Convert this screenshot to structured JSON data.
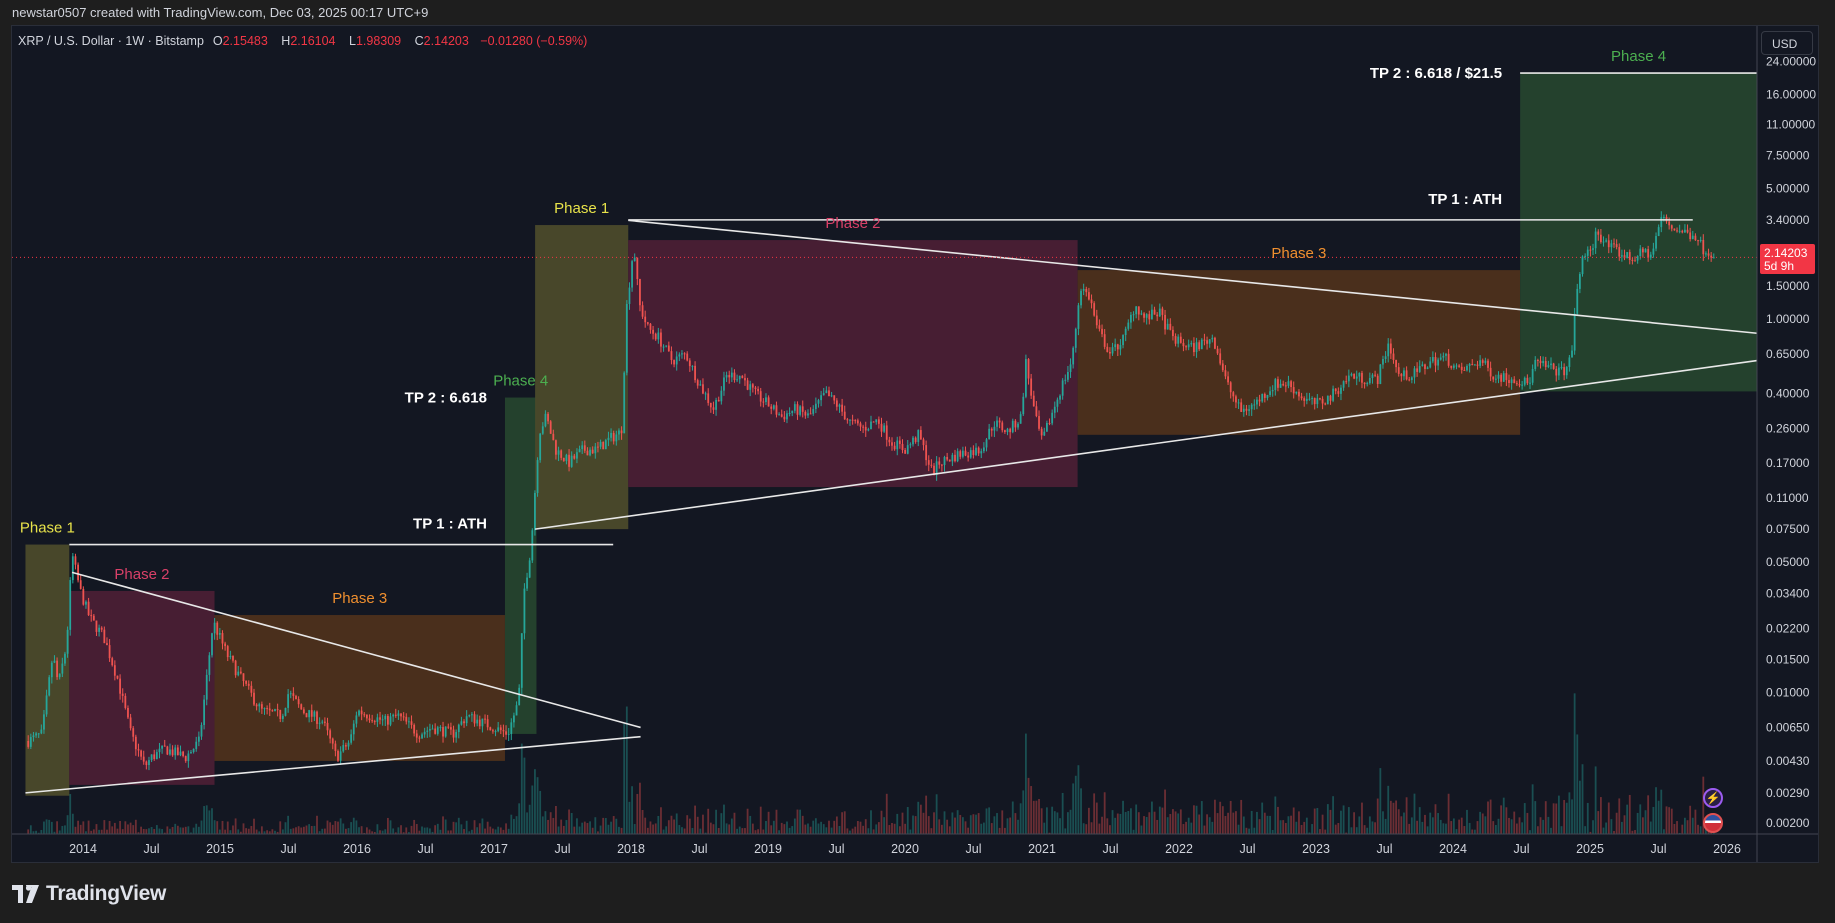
{
  "credit": "newstar0507 created with TradingView.com, Dec 03, 2025 00:17 UTC+9",
  "legend": {
    "symbol": "XRP / U.S. Dollar · 1W · Bitstamp",
    "o_label": "O",
    "o": "2.15483",
    "h_label": "H",
    "h": "2.16104",
    "l_label": "L",
    "l": "1.98309",
    "c_label": "C",
    "c": "2.14203",
    "change": "−0.01280 (−0.59%)"
  },
  "currency_button": "USD",
  "price_badge": {
    "price": "2.14203",
    "countdown": "5d 9h"
  },
  "brand": "TradingView",
  "icons": [
    "lightning-icon",
    "us-flag-icon"
  ],
  "colors": {
    "background": "#131722",
    "up": "#26a69a",
    "down": "#ef5350",
    "phase1": "#e8e34a",
    "phase2": "#d94068",
    "phase3": "#ef8f2f",
    "phase4": "#4caf50",
    "phase1_fill": "#4b4a2b",
    "phase2_fill": "#4a1f35",
    "phase3_fill": "#4d301c",
    "phase4_fill": "#25432e",
    "line": "#e8e8e8",
    "last_price": "#f23645"
  },
  "chart_data": {
    "type": "candlestick",
    "interval": "1W",
    "y_scale": "log",
    "ylim": [
      0.002,
      24
    ],
    "xlim": [
      "2013-08",
      "2026-03"
    ],
    "grid": false,
    "y_ticks": [
      "24.00000",
      "16.00000",
      "11.00000",
      "7.50000",
      "5.00000",
      "3.40000",
      "1.50000",
      "1.00000",
      "0.65000",
      "0.40000",
      "0.26000",
      "0.17000",
      "0.11000",
      "0.07500",
      "0.05000",
      "0.03400",
      "0.02200",
      "0.01500",
      "0.01000",
      "0.00650",
      "0.00430",
      "0.00290",
      "0.00200"
    ],
    "x_ticks": [
      {
        "label": "2014",
        "date": "2014-01"
      },
      {
        "label": "Jul",
        "date": "2014-07"
      },
      {
        "label": "2015",
        "date": "2015-01"
      },
      {
        "label": "Jul",
        "date": "2015-07"
      },
      {
        "label": "2016",
        "date": "2016-01"
      },
      {
        "label": "Jul",
        "date": "2016-07"
      },
      {
        "label": "2017",
        "date": "2017-01"
      },
      {
        "label": "Jul",
        "date": "2017-07"
      },
      {
        "label": "2018",
        "date": "2018-01"
      },
      {
        "label": "Jul",
        "date": "2018-07"
      },
      {
        "label": "2019",
        "date": "2019-01"
      },
      {
        "label": "Jul",
        "date": "2019-07"
      },
      {
        "label": "2020",
        "date": "2020-01"
      },
      {
        "label": "Jul",
        "date": "2020-07"
      },
      {
        "label": "2021",
        "date": "2021-01"
      },
      {
        "label": "Jul",
        "date": "2021-07"
      },
      {
        "label": "2022",
        "date": "2022-01"
      },
      {
        "label": "Jul",
        "date": "2022-07"
      },
      {
        "label": "2023",
        "date": "2023-01"
      },
      {
        "label": "Jul",
        "date": "2023-07"
      },
      {
        "label": "2024",
        "date": "2024-01"
      },
      {
        "label": "Jul",
        "date": "2024-07"
      },
      {
        "label": "2025",
        "date": "2025-01"
      },
      {
        "label": "Jul",
        "date": "2025-07"
      },
      {
        "label": "2026",
        "date": "2026-01"
      }
    ],
    "last_price": 2.14203,
    "close_path": [
      [
        2013.6,
        0.0055
      ],
      [
        2013.7,
        0.006
      ],
      [
        2013.78,
        0.016
      ],
      [
        2013.82,
        0.011
      ],
      [
        2013.88,
        0.018
      ],
      [
        2013.92,
        0.055
      ],
      [
        2013.98,
        0.035
      ],
      [
        2014.05,
        0.025
      ],
      [
        2014.15,
        0.02
      ],
      [
        2014.25,
        0.012
      ],
      [
        2014.35,
        0.006
      ],
      [
        2014.45,
        0.004
      ],
      [
        2014.5,
        0.0045
      ],
      [
        2014.6,
        0.005
      ],
      [
        2014.75,
        0.0045
      ],
      [
        2014.85,
        0.0055
      ],
      [
        2014.95,
        0.024
      ],
      [
        2015.05,
        0.016
      ],
      [
        2015.15,
        0.012
      ],
      [
        2015.3,
        0.008
      ],
      [
        2015.45,
        0.0075
      ],
      [
        2015.5,
        0.01
      ],
      [
        2015.6,
        0.008
      ],
      [
        2015.75,
        0.007
      ],
      [
        2015.85,
        0.0045
      ],
      [
        2015.95,
        0.0055
      ],
      [
        2016.0,
        0.008
      ],
      [
        2016.1,
        0.0075
      ],
      [
        2016.2,
        0.007
      ],
      [
        2016.3,
        0.0075
      ],
      [
        2016.45,
        0.006
      ],
      [
        2016.55,
        0.0065
      ],
      [
        2016.7,
        0.006
      ],
      [
        2016.8,
        0.0075
      ],
      [
        2016.9,
        0.007
      ],
      [
        2017.0,
        0.0065
      ],
      [
        2017.1,
        0.006
      ],
      [
        2017.18,
        0.009
      ],
      [
        2017.22,
        0.035
      ],
      [
        2017.27,
        0.06
      ],
      [
        2017.33,
        0.25
      ],
      [
        2017.38,
        0.3
      ],
      [
        2017.45,
        0.2
      ],
      [
        2017.55,
        0.17
      ],
      [
        2017.65,
        0.2
      ],
      [
        2017.75,
        0.2
      ],
      [
        2017.85,
        0.23
      ],
      [
        2017.93,
        0.25
      ],
      [
        2017.97,
        1.2
      ],
      [
        2018.02,
        2.5
      ],
      [
        2018.06,
        1.2
      ],
      [
        2018.12,
        0.9
      ],
      [
        2018.2,
        0.8
      ],
      [
        2018.3,
        0.6
      ],
      [
        2018.4,
        0.65
      ],
      [
        2018.5,
        0.45
      ],
      [
        2018.6,
        0.33
      ],
      [
        2018.7,
        0.5
      ],
      [
        2018.8,
        0.5
      ],
      [
        2018.9,
        0.4
      ],
      [
        2019.0,
        0.35
      ],
      [
        2019.1,
        0.3
      ],
      [
        2019.2,
        0.33
      ],
      [
        2019.3,
        0.3
      ],
      [
        2019.42,
        0.4
      ],
      [
        2019.5,
        0.35
      ],
      [
        2019.6,
        0.28
      ],
      [
        2019.7,
        0.26
      ],
      [
        2019.8,
        0.29
      ],
      [
        2019.9,
        0.22
      ],
      [
        2020.0,
        0.2
      ],
      [
        2020.1,
        0.24
      ],
      [
        2020.2,
        0.15
      ],
      [
        2020.25,
        0.17
      ],
      [
        2020.4,
        0.19
      ],
      [
        2020.55,
        0.2
      ],
      [
        2020.65,
        0.28
      ],
      [
        2020.75,
        0.25
      ],
      [
        2020.85,
        0.3
      ],
      [
        2020.88,
        0.6
      ],
      [
        2020.95,
        0.3
      ],
      [
        2021.0,
        0.22
      ],
      [
        2021.05,
        0.28
      ],
      [
        2021.15,
        0.45
      ],
      [
        2021.22,
        0.6
      ],
      [
        2021.28,
        1.5
      ],
      [
        2021.35,
        1.3
      ],
      [
        2021.4,
        0.9
      ],
      [
        2021.5,
        0.65
      ],
      [
        2021.6,
        0.8
      ],
      [
        2021.68,
        1.2
      ],
      [
        2021.75,
        1.0
      ],
      [
        2021.85,
        1.1
      ],
      [
        2021.95,
        0.8
      ],
      [
        2022.0,
        0.75
      ],
      [
        2022.1,
        0.7
      ],
      [
        2022.25,
        0.8
      ],
      [
        2022.35,
        0.45
      ],
      [
        2022.45,
        0.32
      ],
      [
        2022.55,
        0.35
      ],
      [
        2022.7,
        0.45
      ],
      [
        2022.8,
        0.45
      ],
      [
        2022.9,
        0.38
      ],
      [
        2023.0,
        0.35
      ],
      [
        2023.1,
        0.38
      ],
      [
        2023.25,
        0.5
      ],
      [
        2023.35,
        0.48
      ],
      [
        2023.45,
        0.48
      ],
      [
        2023.53,
        0.75
      ],
      [
        2023.6,
        0.5
      ],
      [
        2023.7,
        0.5
      ],
      [
        2023.85,
        0.6
      ],
      [
        2023.95,
        0.62
      ],
      [
        2024.05,
        0.52
      ],
      [
        2024.2,
        0.6
      ],
      [
        2024.3,
        0.5
      ],
      [
        2024.45,
        0.48
      ],
      [
        2024.55,
        0.45
      ],
      [
        2024.6,
        0.58
      ],
      [
        2024.7,
        0.55
      ],
      [
        2024.8,
        0.52
      ],
      [
        2024.86,
        0.6
      ],
      [
        2024.9,
        1.3
      ],
      [
        2024.95,
        2.3
      ],
      [
        2025.0,
        2.2
      ],
      [
        2025.05,
        3.0
      ],
      [
        2025.12,
        2.5
      ],
      [
        2025.2,
        2.3
      ],
      [
        2025.3,
        2.1
      ],
      [
        2025.4,
        2.3
      ],
      [
        2025.45,
        2.2
      ],
      [
        2025.52,
        3.5
      ],
      [
        2025.6,
        3.1
      ],
      [
        2025.7,
        2.9
      ],
      [
        2025.78,
        2.8
      ],
      [
        2025.82,
        2.4
      ],
      [
        2025.88,
        2.3
      ],
      [
        2025.92,
        2.14203
      ]
    ],
    "boxes": [
      {
        "label": "Phase 1",
        "phase": "phase1",
        "from": 2013.58,
        "to": 2013.9,
        "top": 0.062,
        "bottom": 0.0028
      },
      {
        "label": "Phase 2",
        "phase": "phase2",
        "from": 2013.9,
        "to": 2014.96,
        "top": 0.035,
        "bottom": 0.0032
      },
      {
        "label": "Phase 3",
        "phase": "phase3",
        "from": 2014.96,
        "to": 2017.08,
        "top": 0.026,
        "bottom": 0.0043
      },
      {
        "label": "Phase 4",
        "phase": "phase4",
        "from": 2017.08,
        "to": 2017.31,
        "top": 0.38,
        "bottom": 0.006
      },
      {
        "label": "Phase 1",
        "phase": "phase1",
        "from": 2017.3,
        "to": 2017.98,
        "top": 3.19,
        "bottom": 0.075
      },
      {
        "label": "Phase 2",
        "phase": "phase2",
        "from": 2017.98,
        "to": 2021.26,
        "top": 2.65,
        "bottom": 0.126
      },
      {
        "label": "Phase 3",
        "phase": "phase3",
        "from": 2021.26,
        "to": 2024.49,
        "top": 1.83,
        "bottom": 0.24
      },
      {
        "label": "Phase 4",
        "phase": "phase4",
        "from": 2024.49,
        "to": 2026.22,
        "top": 20.8,
        "bottom": 0.41
      }
    ],
    "trendlines": [
      {
        "from": [
          2013.9,
          0.062
        ],
        "to": [
          2017.87,
          0.062
        ]
      },
      {
        "from": [
          2013.92,
          0.044
        ],
        "to": [
          2018.07,
          0.0065
        ]
      },
      {
        "from": [
          2013.58,
          0.0029
        ],
        "to": [
          2018.07,
          0.0058
        ]
      },
      {
        "from": [
          2017.98,
          3.4
        ],
        "to": [
          2025.75,
          3.4
        ]
      },
      {
        "from": [
          2024.49,
          20.8
        ],
        "to": [
          2026.22,
          20.8
        ]
      },
      {
        "from": [
          2017.98,
          3.38
        ],
        "to": [
          2026.22,
          0.84
        ]
      },
      {
        "from": [
          2017.3,
          0.075
        ],
        "to": [
          2026.22,
          0.6
        ]
      }
    ],
    "annotations": [
      {
        "text": "TP 1 : ATH",
        "price": 0.062,
        "before": 2017.08,
        "kind": "tp1"
      },
      {
        "text": "TP 2 : 6.618",
        "price": 0.38,
        "before": 2017.08,
        "kind": "tp2"
      },
      {
        "text": "TP 1 : ATH",
        "price": 3.4,
        "before": 2024.49,
        "kind": "tp1"
      },
      {
        "text": "TP 2 : 6.618 / $21.5",
        "price": 20.8,
        "before": 2024.49,
        "kind": "tp2"
      }
    ]
  }
}
